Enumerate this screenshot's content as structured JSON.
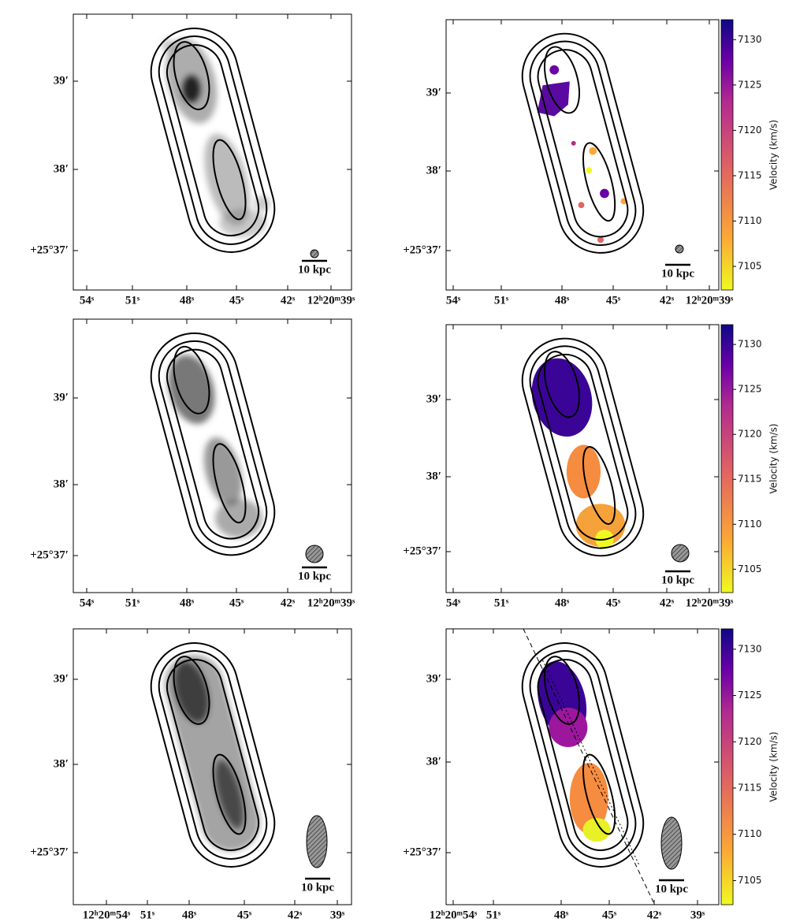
{
  "panels": [
    {
      "y_ticks": [
        "39′",
        "38′",
        "+25°37′"
      ],
      "x_ticks": [
        "54ˢ",
        "51ˢ",
        "48ˢ",
        "45ˢ",
        "42ˢ",
        "12ʰ20ᵐ39ˢ"
      ],
      "scale_bar": "10 kpc"
    },
    {
      "y_ticks": [
        "39′",
        "38′",
        "+25°37′"
      ],
      "x_ticks": [
        "54ˢ",
        "51ˢ",
        "48ˢ",
        "45ˢ",
        "42ˢ",
        "12ʰ20ᵐ39ˢ"
      ],
      "scale_bar": "10 kpc",
      "colorbar": {
        "label": "Velocity (km/s)",
        "ylim": [
          7102.4,
          7132.2
        ],
        "ticks": [
          7105,
          7110,
          7115,
          7120,
          7125,
          7130
        ]
      }
    },
    {
      "y_ticks": [
        "39′",
        "38′",
        "+25°37′"
      ],
      "x_ticks": [
        "54ˢ",
        "51ˢ",
        "48ˢ",
        "45ˢ",
        "42ˢ",
        "12ʰ20ᵐ39ˢ"
      ],
      "scale_bar": "10 kpc"
    },
    {
      "y_ticks": [
        "39′",
        "38′",
        "+25°37′"
      ],
      "x_ticks": [
        "54ˢ",
        "51ˢ",
        "48ˢ",
        "45ˢ",
        "42ˢ",
        "12ʰ20ᵐ39ˢ"
      ],
      "scale_bar": "10 kpc",
      "colorbar": {
        "label": "Velocity (km/s)",
        "ylim": [
          7102.4,
          7132.2
        ],
        "ticks": [
          7105,
          7110,
          7115,
          7120,
          7125,
          7130
        ]
      }
    },
    {
      "y_ticks": [
        "39′",
        "38′",
        "+25°37′"
      ],
      "x_ticks": [
        "12ʰ20ᵐ54ˢ",
        "51ˢ",
        "48ˢ",
        "45ˢ",
        "42ˢ",
        "39ˢ"
      ],
      "scale_bar": "10 kpc"
    },
    {
      "y_ticks": [
        "39′",
        "38′",
        "+25°37′"
      ],
      "x_ticks": [
        "12ʰ20ᵐ54ˢ",
        "51ˢ",
        "48ˢ",
        "45ˢ",
        "42ˢ",
        "39ˢ"
      ],
      "scale_bar": "10 kpc",
      "colorbar": {
        "label": "Velocity (km/s)",
        "ylim": [
          7102.4,
          7132.2
        ],
        "ticks": [
          7105,
          7110,
          7115,
          7120,
          7125,
          7130
        ]
      }
    }
  ]
}
